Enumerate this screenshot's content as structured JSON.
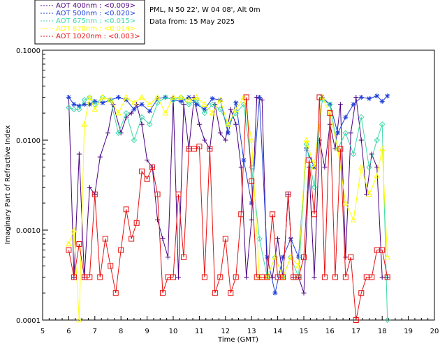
{
  "chart_data": {
    "type": "line",
    "title": "PML, N 50 22', W 04 08', Alt 0m",
    "subtitle": "Data from: 15 May 2025",
    "xlabel": "Time (GMT)",
    "ylabel": "Imaginary Part of Refractive Index",
    "xlim": [
      5,
      20
    ],
    "ylim": [
      0.0001,
      0.1
    ],
    "yscale": "log",
    "x_ticks": [
      "5",
      "6",
      "7",
      "8",
      "9",
      "10",
      "11",
      "12",
      "13",
      "14",
      "15",
      "16",
      "17",
      "18",
      "19",
      "20"
    ],
    "y_ticks": [
      "0.0001",
      "0.0010",
      "0.0100",
      "0.1000"
    ],
    "legend": [
      "AOT  400nm : <0.009>",
      "AOT  500nm : <0.020>",
      "AOT  675nm : <0.015>",
      "AOT  870nm : <0.014>",
      "AOT 1020nm : <0.003>"
    ],
    "series": [
      {
        "name": "AOT 400nm",
        "color": "#4b0082",
        "marker": "plus",
        "x": [
          6.0,
          6.2,
          6.4,
          6.6,
          6.8,
          7.0,
          7.2,
          7.5,
          7.7,
          8.0,
          8.2,
          8.4,
          8.6,
          8.8,
          9.0,
          9.2,
          9.4,
          9.6,
          9.8,
          10.0,
          10.2,
          10.4,
          10.6,
          10.8,
          11.0,
          11.2,
          11.4,
          11.6,
          11.8,
          12.0,
          12.2,
          12.4,
          12.6,
          12.8,
          13.0,
          13.2,
          13.4,
          13.6,
          13.8,
          14.0,
          14.2,
          14.4,
          14.6,
          14.8,
          15.0,
          15.2,
          15.4,
          15.6,
          15.8,
          16.0,
          16.2,
          16.4,
          16.6,
          16.8,
          17.0,
          17.2,
          17.4,
          17.6,
          17.8,
          18.0,
          18.2
        ],
        "y": [
          0.03,
          0.0003,
          0.007,
          0.0003,
          0.003,
          0.0025,
          0.0065,
          0.012,
          0.025,
          0.012,
          0.018,
          0.02,
          0.025,
          0.015,
          0.006,
          0.005,
          0.0013,
          0.0008,
          0.0005,
          0.03,
          0.0003,
          0.025,
          0.008,
          0.03,
          0.015,
          0.01,
          0.008,
          0.025,
          0.012,
          0.01,
          0.022,
          0.015,
          0.005,
          0.0003,
          0.0013,
          0.03,
          0.028,
          0.0003,
          0.0003,
          0.0008,
          0.0003,
          0.0025,
          0.0003,
          0.0003,
          0.0002,
          0.005,
          0.0003,
          0.01,
          0.005,
          0.015,
          0.008,
          0.025,
          0.0005,
          0.012,
          0.03,
          0.01,
          0.0025,
          0.007,
          0.005,
          0.0003,
          0.0003
        ]
      },
      {
        "name": "AOT 500nm",
        "color": "#1d3fd8",
        "marker": "asterisk",
        "x": [
          6.0,
          6.2,
          6.4,
          6.6,
          6.8,
          7.0,
          7.3,
          7.6,
          7.9,
          8.2,
          8.5,
          8.8,
          9.1,
          9.4,
          9.7,
          10.0,
          10.3,
          10.6,
          10.9,
          11.2,
          11.5,
          11.8,
          12.1,
          12.4,
          12.7,
          13.0,
          13.3,
          13.6,
          13.9,
          14.2,
          14.5,
          14.8,
          15.1,
          15.4,
          15.7,
          16.0,
          16.3,
          16.6,
          16.9,
          17.2,
          17.5,
          17.8,
          18.0,
          18.2
        ],
        "y": [
          0.03,
          0.025,
          0.024,
          0.025,
          0.025,
          0.027,
          0.026,
          0.028,
          0.03,
          0.028,
          0.022,
          0.025,
          0.021,
          0.029,
          0.03,
          0.028,
          0.027,
          0.03,
          0.025,
          0.022,
          0.029,
          0.028,
          0.012,
          0.026,
          0.006,
          0.002,
          0.03,
          0.0005,
          0.0002,
          0.0005,
          0.0008,
          0.0005,
          0.008,
          0.005,
          0.03,
          0.025,
          0.012,
          0.018,
          0.025,
          0.03,
          0.029,
          0.031,
          0.027,
          0.031
        ]
      },
      {
        "name": "AOT 675nm",
        "color": "#3dd9a8",
        "marker": "diamond",
        "x": [
          6.0,
          6.2,
          6.4,
          6.6,
          6.8,
          7.0,
          7.3,
          7.6,
          7.9,
          8.2,
          8.5,
          8.8,
          9.1,
          9.4,
          9.7,
          10.0,
          10.3,
          10.6,
          10.9,
          11.2,
          11.5,
          11.8,
          12.1,
          12.4,
          12.7,
          13.0,
          13.3,
          13.6,
          13.9,
          14.2,
          14.5,
          14.8,
          15.1,
          15.4,
          15.7,
          16.0,
          16.3,
          16.6,
          16.9,
          17.2,
          17.5,
          17.8,
          18.0,
          18.2
        ],
        "y": [
          0.023,
          0.022,
          0.022,
          0.028,
          0.03,
          0.025,
          0.03,
          0.028,
          0.012,
          0.02,
          0.01,
          0.018,
          0.015,
          0.026,
          0.03,
          0.028,
          0.03,
          0.025,
          0.028,
          0.02,
          0.025,
          0.022,
          0.015,
          0.02,
          0.025,
          0.005,
          0.0008,
          0.0003,
          0.0005,
          0.0003,
          0.0005,
          0.0003,
          0.009,
          0.003,
          0.028,
          0.025,
          0.008,
          0.012,
          0.007,
          0.018,
          0.005,
          0.01,
          0.015,
          0.0001
        ]
      },
      {
        "name": "AOT 870nm",
        "color": "#ffff00",
        "marker": "triangle",
        "x": [
          6.0,
          6.2,
          6.4,
          6.6,
          6.8,
          7.0,
          7.3,
          7.6,
          7.9,
          8.2,
          8.5,
          8.8,
          9.1,
          9.4,
          9.7,
          10.0,
          10.3,
          10.6,
          10.9,
          11.2,
          11.5,
          11.8,
          12.1,
          12.4,
          12.7,
          13.0,
          13.3,
          13.6,
          13.9,
          14.2,
          14.5,
          14.8,
          15.1,
          15.4,
          15.7,
          16.0,
          16.3,
          16.6,
          16.9,
          17.2,
          17.5,
          17.8,
          18.0,
          18.2
        ],
        "y": [
          0.0007,
          0.001,
          0.0001,
          0.015,
          0.03,
          0.022,
          0.03,
          0.028,
          0.02,
          0.03,
          0.026,
          0.03,
          0.025,
          0.03,
          0.02,
          0.03,
          0.03,
          0.028,
          0.03,
          0.025,
          0.02,
          0.028,
          0.015,
          0.022,
          0.03,
          0.01,
          0.0003,
          0.0003,
          0.0005,
          0.0003,
          0.0005,
          0.0004,
          0.01,
          0.005,
          0.03,
          0.02,
          0.008,
          0.002,
          0.0013,
          0.005,
          0.0025,
          0.004,
          0.008,
          0.0005
        ]
      },
      {
        "name": "AOT 1020nm",
        "color": "#e81010",
        "marker": "square",
        "x": [
          6.0,
          6.2,
          6.4,
          6.6,
          6.8,
          7.0,
          7.2,
          7.4,
          7.6,
          7.8,
          8.0,
          8.2,
          8.4,
          8.6,
          8.8,
          9.0,
          9.2,
          9.4,
          9.6,
          9.8,
          10.0,
          10.2,
          10.4,
          10.6,
          10.8,
          11.0,
          11.2,
          11.4,
          11.6,
          11.8,
          12.0,
          12.2,
          12.4,
          12.6,
          12.8,
          13.0,
          13.2,
          13.4,
          13.6,
          13.8,
          14.0,
          14.2,
          14.4,
          14.6,
          14.8,
          15.0,
          15.2,
          15.4,
          15.6,
          15.8,
          16.0,
          16.2,
          16.4,
          16.6,
          16.8,
          17.0,
          17.2,
          17.4,
          17.6,
          17.8,
          18.0,
          18.2
        ],
        "y": [
          0.0006,
          0.0003,
          0.0007,
          0.0003,
          0.0003,
          0.0025,
          0.0003,
          0.0008,
          0.0004,
          0.0002,
          0.0006,
          0.0017,
          0.0008,
          0.0012,
          0.0045,
          0.0037,
          0.005,
          0.0025,
          0.0002,
          0.0003,
          0.0003,
          0.0025,
          0.0005,
          0.008,
          0.008,
          0.0085,
          0.0003,
          0.008,
          0.0002,
          0.0003,
          0.0008,
          0.0002,
          0.0003,
          0.0015,
          0.03,
          0.0035,
          0.0003,
          0.0003,
          0.0003,
          0.0015,
          0.0003,
          0.0003,
          0.0025,
          0.0003,
          0.0003,
          0.0005,
          0.006,
          0.0015,
          0.03,
          0.0003,
          0.02,
          0.0003,
          0.008,
          0.0003,
          0.0005,
          0.0001,
          0.0002,
          0.0003,
          0.0003,
          0.0006,
          0.0006,
          0.0003
        ]
      }
    ]
  }
}
